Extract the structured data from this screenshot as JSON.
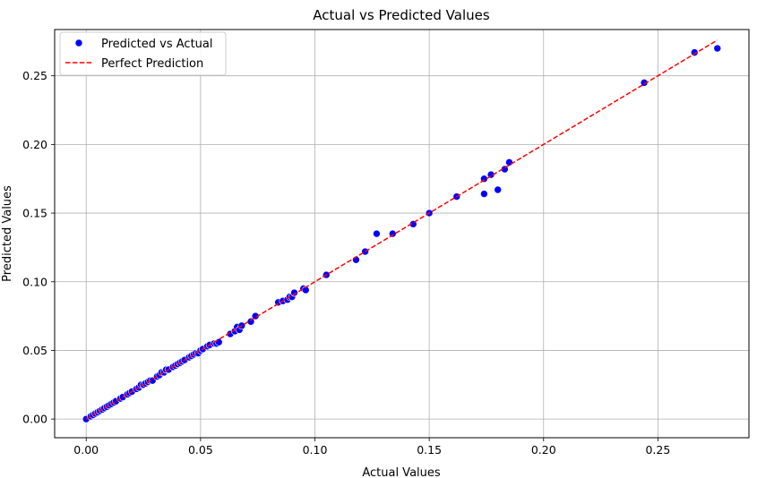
{
  "chart_data": {
    "type": "scatter",
    "title": "Actual vs Predicted Values",
    "xlabel": "Actual Values",
    "ylabel": "Predicted Values",
    "xlim": [
      -0.0138,
      0.2898
    ],
    "ylim": [
      -0.0136,
      0.2837
    ],
    "xticks": [
      "0.00",
      "0.05",
      "0.10",
      "0.15",
      "0.20",
      "0.25"
    ],
    "yticks": [
      "0.00",
      "0.05",
      "0.10",
      "0.15",
      "0.20",
      "0.25"
    ],
    "grid": true,
    "legend_position": "top-left",
    "colors": {
      "points": "#0000ff",
      "point_edge": "#ffffff",
      "line": "#ff0000",
      "grid": "#b0b0b0"
    },
    "series": [
      {
        "name": "Predicted vs Actual",
        "kind": "scatter",
        "points": [
          [
            0.0,
            0.0
          ],
          [
            0.002,
            0.002
          ],
          [
            0.003,
            0.003
          ],
          [
            0.004,
            0.004
          ],
          [
            0.005,
            0.005
          ],
          [
            0.006,
            0.006
          ],
          [
            0.007,
            0.007
          ],
          [
            0.008,
            0.008
          ],
          [
            0.009,
            0.009
          ],
          [
            0.01,
            0.01
          ],
          [
            0.011,
            0.011
          ],
          [
            0.012,
            0.012
          ],
          [
            0.013,
            0.013
          ],
          [
            0.015,
            0.015
          ],
          [
            0.016,
            0.016
          ],
          [
            0.018,
            0.018
          ],
          [
            0.019,
            0.019
          ],
          [
            0.02,
            0.02
          ],
          [
            0.022,
            0.022
          ],
          [
            0.023,
            0.023
          ],
          [
            0.024,
            0.025
          ],
          [
            0.025,
            0.025
          ],
          [
            0.026,
            0.026
          ],
          [
            0.027,
            0.027
          ],
          [
            0.028,
            0.028
          ],
          [
            0.029,
            0.028
          ],
          [
            0.031,
            0.031
          ],
          [
            0.032,
            0.032
          ],
          [
            0.033,
            0.034
          ],
          [
            0.034,
            0.034
          ],
          [
            0.035,
            0.036
          ],
          [
            0.036,
            0.036
          ],
          [
            0.038,
            0.038
          ],
          [
            0.039,
            0.039
          ],
          [
            0.04,
            0.04
          ],
          [
            0.041,
            0.041
          ],
          [
            0.042,
            0.042
          ],
          [
            0.043,
            0.043
          ],
          [
            0.045,
            0.045
          ],
          [
            0.046,
            0.046
          ],
          [
            0.047,
            0.047
          ],
          [
            0.048,
            0.048
          ],
          [
            0.049,
            0.048
          ],
          [
            0.05,
            0.05
          ],
          [
            0.051,
            0.051
          ],
          [
            0.053,
            0.053
          ],
          [
            0.054,
            0.054
          ],
          [
            0.056,
            0.055
          ],
          [
            0.057,
            0.055
          ],
          [
            0.058,
            0.056
          ],
          [
            0.063,
            0.062
          ],
          [
            0.065,
            0.064
          ],
          [
            0.066,
            0.067
          ],
          [
            0.067,
            0.065
          ],
          [
            0.068,
            0.068
          ],
          [
            0.072,
            0.071
          ],
          [
            0.074,
            0.075
          ],
          [
            0.084,
            0.085
          ],
          [
            0.086,
            0.086
          ],
          [
            0.088,
            0.087
          ],
          [
            0.089,
            0.089
          ],
          [
            0.09,
            0.089
          ],
          [
            0.091,
            0.092
          ],
          [
            0.095,
            0.095
          ],
          [
            0.096,
            0.094
          ],
          [
            0.105,
            0.105
          ],
          [
            0.118,
            0.116
          ],
          [
            0.122,
            0.122
          ],
          [
            0.127,
            0.135
          ],
          [
            0.134,
            0.135
          ],
          [
            0.143,
            0.142
          ],
          [
            0.15,
            0.15
          ],
          [
            0.162,
            0.162
          ],
          [
            0.174,
            0.175
          ],
          [
            0.174,
            0.164
          ],
          [
            0.177,
            0.178
          ],
          [
            0.18,
            0.167
          ],
          [
            0.183,
            0.182
          ],
          [
            0.185,
            0.187
          ],
          [
            0.244,
            0.245
          ],
          [
            0.266,
            0.267
          ],
          [
            0.276,
            0.27
          ]
        ]
      },
      {
        "name": "Perfect Prediction",
        "kind": "line",
        "style": "dashed",
        "points": [
          [
            0.0,
            0.0
          ],
          [
            0.276,
            0.276
          ]
        ]
      }
    ]
  }
}
